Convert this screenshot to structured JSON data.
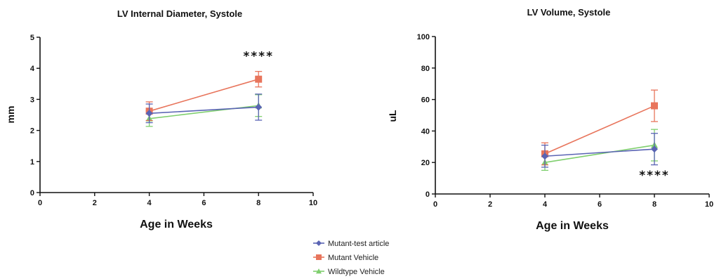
{
  "colors": {
    "Mutant-test article": "#5a64b4",
    "Mutant Vehicle": "#e8755c",
    "Wildtype Vehicle": "#7fcf6e"
  },
  "markers": {
    "Mutant-test article": "diamond",
    "Mutant Vehicle": "square",
    "Wildtype Vehicle": "triangle"
  },
  "legend": [
    "Mutant-test article",
    "Mutant Vehicle",
    "Wildtype Vehicle"
  ],
  "chart_data": [
    {
      "type": "line",
      "title": "LV Internal Diameter, Systole",
      "xlabel": "Age in Weeks",
      "ylabel": "mm",
      "xlim": [
        0,
        10
      ],
      "ylim": [
        0,
        5
      ],
      "xticks": [
        0,
        2,
        4,
        6,
        8,
        10
      ],
      "yticks": [
        0,
        1,
        2,
        3,
        4,
        5
      ],
      "annotation": {
        "text": "****",
        "x": 8,
        "y": 4.4
      },
      "series": [
        {
          "name": "Mutant-test article",
          "x": [
            4,
            8
          ],
          "y": [
            2.55,
            2.75
          ],
          "err": [
            0.3,
            0.42
          ]
        },
        {
          "name": "Mutant Vehicle",
          "x": [
            4,
            8
          ],
          "y": [
            2.62,
            3.65
          ],
          "err": [
            0.3,
            0.25
          ]
        },
        {
          "name": "Wildtype Vehicle",
          "x": [
            4,
            8
          ],
          "y": [
            2.38,
            2.8
          ],
          "err": [
            0.25,
            0.35
          ]
        }
      ]
    },
    {
      "type": "line",
      "title": "LV Volume, Systole",
      "xlabel": "Age in Weeks",
      "ylabel": "uL",
      "xlim": [
        0,
        10
      ],
      "ylim": [
        0,
        100
      ],
      "xticks": [
        0,
        2,
        4,
        6,
        8,
        10
      ],
      "yticks": [
        0,
        20,
        40,
        60,
        80,
        100
      ],
      "annotation": {
        "text": "****",
        "x": 8,
        "y": 12
      },
      "series": [
        {
          "name": "Mutant-test article",
          "x": [
            4,
            8
          ],
          "y": [
            24,
            28.5
          ],
          "err": [
            7,
            10
          ]
        },
        {
          "name": "Mutant Vehicle",
          "x": [
            4,
            8
          ],
          "y": [
            25.5,
            56
          ],
          "err": [
            7,
            10
          ]
        },
        {
          "name": "Wildtype Vehicle",
          "x": [
            4,
            8
          ],
          "y": [
            20,
            31
          ],
          "err": [
            5,
            10
          ]
        }
      ]
    }
  ]
}
